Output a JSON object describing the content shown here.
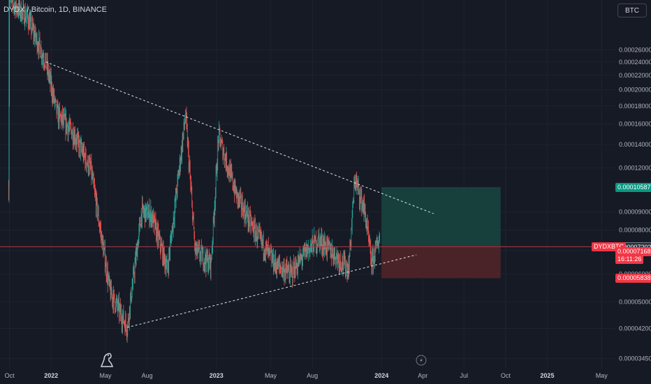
{
  "header": {
    "title": "DYDX / Bitcoin, 1D, BINANCE",
    "currency_button": "BTC"
  },
  "colors": {
    "background": "#161a25",
    "grid": "#1f2330",
    "up": "#26a69a",
    "down": "#ef5350",
    "target_zone": "#17403d",
    "stop_zone": "#4a2328",
    "trendline": "#e0e3eb",
    "price_line": "#b03a44"
  },
  "icons": {
    "logo": "tradingview-dino-icon",
    "flash": "lightning-icon"
  },
  "chart_data": {
    "type": "candlestick",
    "title": "DYDX / Bitcoin, 1D, BINANCE",
    "symbol": "DYDXBTC",
    "y_axis": {
      "scale": "log",
      "tick_labels": [
        "0.00026000",
        "0.00024000",
        "0.00022000",
        "0.00020000",
        "0.00018000",
        "0.00016000",
        "0.00014000",
        "0.00012000",
        "0.00009000",
        "0.00008000",
        "0.00007000",
        "0.00006000",
        "0.00005000",
        "0.00004200",
        "0.00003450"
      ],
      "tick_values": [
        0.00026,
        0.00024,
        0.00022,
        0.0002,
        0.00018,
        0.00016,
        0.00014,
        0.00012,
        9e-05,
        8e-05,
        7e-05,
        6e-05,
        5e-05,
        4.2e-05,
        3.45e-05
      ],
      "range": [
        3.23e-05,
        0.00036
      ]
    },
    "x_axis": {
      "tick_labels": [
        "Oct",
        "2022",
        "May",
        "Aug",
        "2023",
        "May",
        "Aug",
        "2024",
        "Apr",
        "Jul",
        "Oct",
        "2025",
        "May"
      ],
      "bold_labels": [
        "2022",
        "2023",
        "2024",
        "2025"
      ],
      "range": [
        "2021-09-10",
        "2025-05-30"
      ]
    },
    "key_points": [
      {
        "date": "2021-09-29",
        "price": 0.000105
      },
      {
        "date": "2021-10-01",
        "price": 0.00036
      },
      {
        "date": "2021-11-10",
        "price": 0.00032
      },
      {
        "date": "2021-12-20",
        "price": 0.00024
      },
      {
        "date": "2022-01-15",
        "price": 0.00017
      },
      {
        "date": "2022-02-20",
        "price": 0.00015
      },
      {
        "date": "2022-03-30",
        "price": 0.000118
      },
      {
        "date": "2022-05-11",
        "price": 5.35e-05
      },
      {
        "date": "2022-06-18",
        "price": 4.23e-05
      },
      {
        "date": "2022-07-20",
        "price": 9e-05
      },
      {
        "date": "2022-08-10",
        "price": 8.85e-05
      },
      {
        "date": "2022-09-15",
        "price": 6.2e-05
      },
      {
        "date": "2022-10-25",
        "price": 0.00017
      },
      {
        "date": "2022-11-15",
        "price": 7e-05
      },
      {
        "date": "2022-12-20",
        "price": 6.4e-05
      },
      {
        "date": "2023-01-06",
        "price": 0.000148
      },
      {
        "date": "2023-02-15",
        "price": 0.0001
      },
      {
        "date": "2023-03-25",
        "price": 8e-05
      },
      {
        "date": "2023-05-10",
        "price": 6.4e-05
      },
      {
        "date": "2023-06-15",
        "price": 6e-05
      },
      {
        "date": "2023-07-20",
        "price": 7e-05
      },
      {
        "date": "2023-08-15",
        "price": 7.5e-05
      },
      {
        "date": "2023-09-20",
        "price": 6.8e-05
      },
      {
        "date": "2023-10-20",
        "price": 6.2e-05
      },
      {
        "date": "2023-11-03",
        "price": 0.000112
      },
      {
        "date": "2023-11-25",
        "price": 9e-05
      },
      {
        "date": "2023-12-10",
        "price": 6.4e-05
      },
      {
        "date": "2023-12-28",
        "price": 7.7e-05
      }
    ],
    "trendlines": [
      {
        "name": "descending resistance",
        "from": {
          "date": "2021-12-20",
          "price": 0.00024
        },
        "to": {
          "date": "2024-04-25",
          "price": 8.9e-05
        }
      },
      {
        "name": "ascending support",
        "from": {
          "date": "2022-06-18",
          "price": 4.23e-05
        },
        "to": {
          "date": "2024-03-18",
          "price": 6.8e-05
        }
      }
    ],
    "position": {
      "type": "long",
      "start": "2024-01-01",
      "end": "2024-09-20",
      "entry": 7.202e-05,
      "target": 0.00010587,
      "stop": 5.838e-05
    },
    "price_labels": {
      "target": "0.00010587",
      "entry": "0.00007202",
      "symbol": "DYDXBTC",
      "last": "0.00007168",
      "countdown": "16:11:26",
      "stop": "0.00005838"
    }
  }
}
